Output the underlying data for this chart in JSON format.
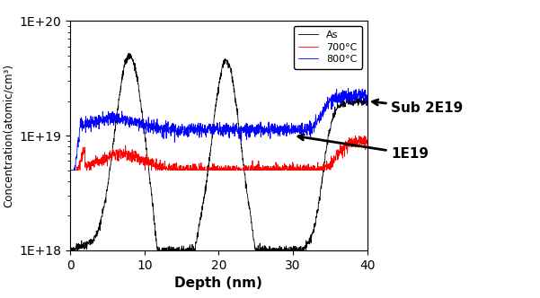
{
  "xlabel": "Depth (nm)",
  "ylabel": "Concentration(atomic/cm³)",
  "xlim": [
    0,
    40
  ],
  "ylim_log": [
    1e+18,
    1e+20
  ],
  "xticks": [
    0,
    10,
    20,
    30,
    40
  ],
  "legend_labels": [
    "As",
    "700°C",
    "800°C"
  ],
  "legend_colors": [
    "black",
    "red",
    "blue"
  ],
  "annotation_upper": "Sub 2E19",
  "annotation_lower": "1E19",
  "background_color": "#ffffff",
  "figsize": [
    6.01,
    3.32
  ],
  "dpi": 100
}
